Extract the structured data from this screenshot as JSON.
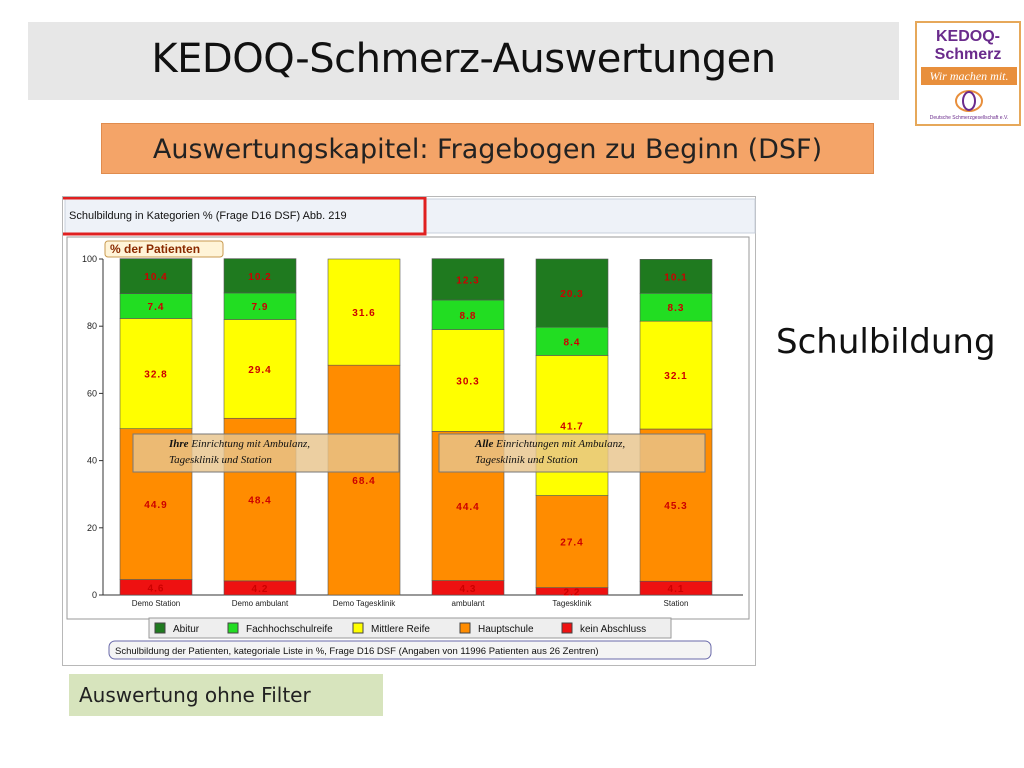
{
  "slide": {
    "title": "KEDOQ-Schmerz-Auswertungen",
    "chapter": "Auswertungskapitel: Fragebogen zu Beginn (DSF)",
    "topic": "Schulbildung",
    "filter_note": "Auswertung ohne Filter"
  },
  "logo": {
    "line1": "KEDOQ-",
    "line2": "Schmerz",
    "slogan": "Wir machen mit.",
    "org": "Deutsche Schmerzgesellschaft e.V."
  },
  "chart_data": {
    "type": "bar",
    "stacked": true,
    "title": "Schulbildung in Kategorien % (Frage D16 DSF) Abb. 219",
    "ylabel": "% der Patienten",
    "ylim": [
      0,
      100
    ],
    "yticks": [
      0,
      20,
      40,
      60,
      80,
      100
    ],
    "categories": [
      "Demo Station",
      "Demo ambulant",
      "Demo Tagesklinik",
      "ambulant",
      "Tagesklinik",
      "Station"
    ],
    "series": [
      {
        "name": "Abitur",
        "color": "#1f7a1f",
        "values": [
          10.4,
          10.2,
          0,
          12.3,
          20.3,
          10.1
        ]
      },
      {
        "name": "Fachhochschulreife",
        "color": "#22dd22",
        "values": [
          7.4,
          7.9,
          0,
          8.8,
          8.4,
          8.3
        ]
      },
      {
        "name": "Mittlere Reife",
        "color": "#ffff00",
        "values": [
          32.8,
          29.4,
          31.6,
          30.3,
          41.7,
          32.1
        ]
      },
      {
        "name": "Hauptschule",
        "color": "#ff8c00",
        "values": [
          44.9,
          48.4,
          68.4,
          44.4,
          27.4,
          45.3
        ]
      },
      {
        "name": "kein Abschluss",
        "color": "#ee1111",
        "values": [
          4.6,
          4.2,
          0,
          4.3,
          2.2,
          4.1
        ]
      }
    ],
    "stack_order_bottom_to_top": [
      "kein Abschluss",
      "Hauptschule",
      "Mittlere Reife",
      "Fachhochschulreife",
      "Abitur"
    ],
    "legend_placement": "bottom",
    "annotations": [
      {
        "bold": "Ihre",
        "text": " Einrichtung mit Ambulanz,",
        "line2": "Tagesklinik und Station"
      },
      {
        "bold": "Alle",
        "text": " Einrichtungen mit Ambulanz,",
        "line2": "Tagesklinik und Station"
      }
    ],
    "footnote": "Schulbildung der Patienten, kategoriale Liste in %, Frage D16 DSF (Angaben von 11996 Patienten aus 26 Zentren)",
    "grid": false
  }
}
